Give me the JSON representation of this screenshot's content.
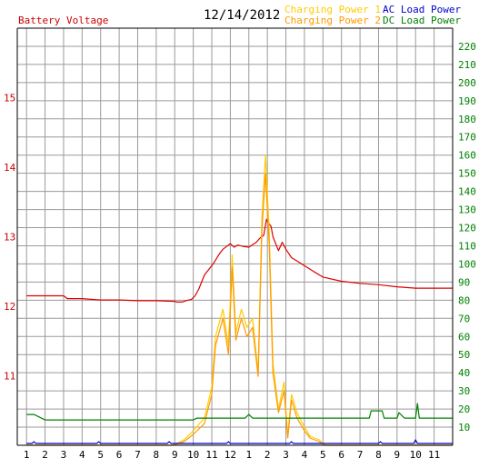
{
  "header": {
    "left_title": "Battery Voltage",
    "date": "12/14/2012",
    "legend": [
      {
        "label": "Charging Power 1",
        "color": "#ffcc00"
      },
      {
        "label": "AC Load Power",
        "color": "#0000cc"
      },
      {
        "label": "Charging Power 2",
        "color": "#ff9900"
      },
      {
        "label": "DC Load Power",
        "color": "#008000"
      }
    ]
  },
  "chart_data": {
    "type": "line",
    "title": "",
    "xlabel": "",
    "x_tick_labels": [
      "1",
      "2",
      "3",
      "4",
      "5",
      "6",
      "7",
      "8",
      "9",
      "10",
      "11",
      "12",
      "1",
      "2",
      "3",
      "4",
      "5",
      "6",
      "7",
      "8",
      "9",
      "10",
      "11"
    ],
    "grid": true,
    "left_axis": {
      "label": "Battery Voltage",
      "ticks": [
        "11",
        "12",
        "13",
        "14",
        "15"
      ],
      "range": [
        10.0,
        16.0
      ],
      "color": "#cc0000"
    },
    "right_axis": {
      "ticks": [
        "10",
        "20",
        "30",
        "40",
        "50",
        "60",
        "70",
        "80",
        "90",
        "100",
        "110",
        "120",
        "130",
        "140",
        "150",
        "160",
        "170",
        "180",
        "190",
        "200",
        "210",
        "220"
      ],
      "range": [
        0,
        230
      ],
      "color": "#008000"
    },
    "series": [
      {
        "name": "Battery Voltage",
        "axis": "left",
        "color": "#dd0000",
        "x": [
          0,
          1,
          2,
          2.2,
          3,
          4,
          5,
          6,
          7,
          8,
          8.1,
          8.4,
          8.6,
          8.9,
          9.1,
          9.3,
          9.6,
          9.9,
          10.1,
          10.4,
          10.6,
          10.8,
          11.0,
          11.2,
          11.4,
          11.7,
          12.0,
          12.4,
          12.6,
          12.8,
          12.95,
          13.05,
          13.2,
          13.3,
          13.6,
          13.8,
          14.0,
          14.1,
          14.3,
          14.6,
          14.9,
          15.2,
          15.5,
          16,
          17,
          18,
          19,
          20,
          21,
          22,
          23
        ],
        "y": [
          12.15,
          12.15,
          12.15,
          12.11,
          12.11,
          12.09,
          12.09,
          12.08,
          12.08,
          12.07,
          12.06,
          12.06,
          12.08,
          12.1,
          12.15,
          12.25,
          12.45,
          12.55,
          12.62,
          12.75,
          12.82,
          12.86,
          12.9,
          12.85,
          12.88,
          12.86,
          12.85,
          12.92,
          12.98,
          13.02,
          13.25,
          13.2,
          13.15,
          13.0,
          12.8,
          12.92,
          12.82,
          12.78,
          12.7,
          12.65,
          12.6,
          12.55,
          12.5,
          12.42,
          12.36,
          12.33,
          12.31,
          12.28,
          12.26,
          12.26,
          12.26
        ]
      },
      {
        "name": "Charging Power 1",
        "axis": "right",
        "color": "#ffcc00",
        "x": [
          0,
          7.9,
          8.5,
          9.0,
          9.6,
          10.0,
          10.2,
          10.6,
          10.9,
          11.1,
          11.3,
          11.6,
          11.9,
          12.2,
          12.5,
          12.7,
          12.9,
          13.1,
          13.3,
          13.6,
          13.9,
          14.1,
          14.3,
          14.6,
          15.0,
          15.3,
          15.8,
          16.1,
          16.5,
          23
        ],
        "y": [
          0,
          0,
          3,
          8,
          15,
          32,
          60,
          75,
          55,
          105,
          62,
          75,
          65,
          70,
          40,
          125,
          160,
          118,
          45,
          20,
          35,
          5,
          28,
          18,
          10,
          5,
          3,
          0,
          0,
          0
        ]
      },
      {
        "name": "Charging Power 2",
        "axis": "right",
        "color": "#ff9900",
        "x": [
          0,
          7.9,
          8.5,
          9.0,
          9.6,
          10.0,
          10.2,
          10.6,
          10.9,
          11.1,
          11.3,
          11.6,
          11.9,
          12.2,
          12.5,
          12.7,
          12.9,
          13.1,
          13.3,
          13.6,
          13.9,
          14.1,
          14.3,
          14.6,
          15.0,
          15.3,
          15.8,
          16.1,
          16.5,
          23
        ],
        "y": [
          0,
          0,
          2,
          6,
          12,
          28,
          55,
          70,
          50,
          98,
          58,
          70,
          60,
          65,
          38,
          118,
          150,
          110,
          40,
          18,
          30,
          4,
          25,
          15,
          8,
          4,
          2,
          0,
          0,
          0
        ]
      },
      {
        "name": "AC Load Power",
        "axis": "right",
        "color": "#0000cc",
        "x": [
          0,
          0.3,
          0.4,
          0.5,
          3.8,
          3.9,
          4.0,
          7.6,
          7.7,
          7.8,
          10.8,
          10.9,
          11.0,
          14.2,
          14.3,
          14.4,
          19.0,
          19.1,
          19.2,
          20.9,
          21.0,
          21.1,
          23
        ],
        "y": [
          1,
          1,
          2,
          1,
          1,
          2,
          1,
          1,
          2,
          1,
          1,
          2,
          1,
          1,
          2,
          1,
          1,
          2,
          1,
          1,
          3,
          1,
          1
        ]
      },
      {
        "name": "DC Load Power",
        "axis": "right",
        "color": "#008000",
        "x": [
          0,
          0.4,
          0.8,
          1.0,
          2,
          3,
          4,
          5,
          6,
          7,
          8,
          9,
          9.2,
          9.6,
          10,
          11,
          11.8,
          12.0,
          12.2,
          12.4,
          13,
          14,
          15,
          16,
          17,
          18,
          18.5,
          18.6,
          19.0,
          19.2,
          19.3,
          20,
          20.1,
          20.4,
          20.5,
          21.0,
          21.1,
          21.2,
          21.4,
          23
        ],
        "y": [
          17,
          17,
          15,
          14,
          14,
          14,
          14,
          14,
          14,
          14,
          14,
          14,
          15,
          15,
          15,
          15,
          15,
          17,
          15,
          15,
          15,
          15,
          15,
          15,
          15,
          15,
          15,
          19,
          19,
          19,
          15,
          15,
          18,
          15,
          15,
          15,
          23,
          15,
          15,
          15
        ]
      }
    ]
  }
}
